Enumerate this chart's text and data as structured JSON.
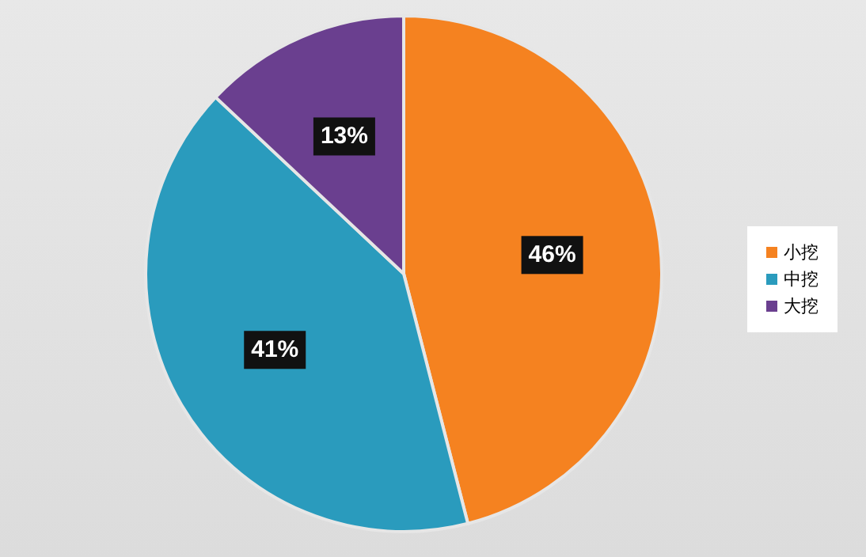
{
  "chart_data": {
    "type": "pie",
    "categories": [
      "小挖",
      "中挖",
      "大挖"
    ],
    "values": [
      46,
      41,
      13
    ],
    "colors": [
      "#f58220",
      "#2a9bbd",
      "#6a3f8f"
    ],
    "value_labels": [
      "46%",
      "41%",
      "13%"
    ],
    "legend": "right"
  }
}
